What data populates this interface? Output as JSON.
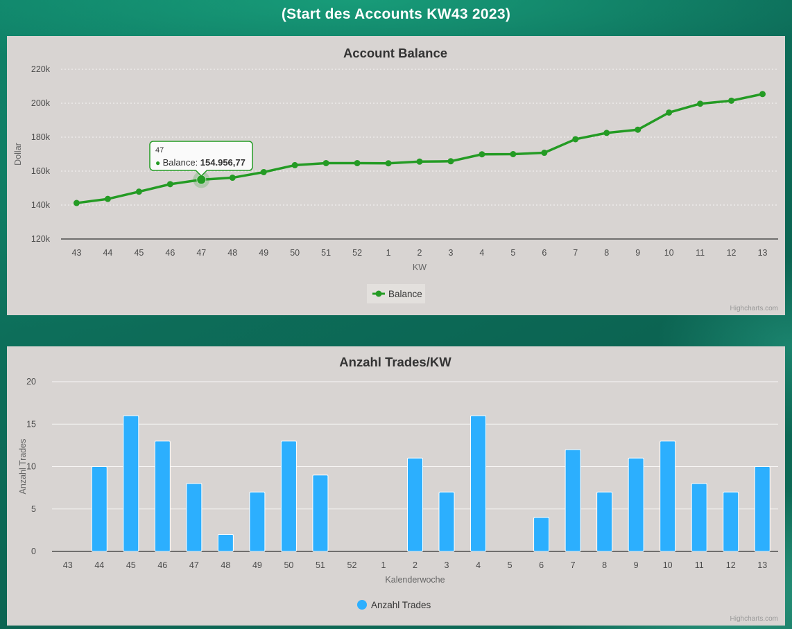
{
  "page": {
    "header_title": "(Start des Accounts KW43 2023)",
    "credits": "Highcharts.com",
    "theme": {
      "background_teal_dark": "#0c6452",
      "background_teal_light": "#1fa183",
      "panel_background": "#d8d4d2",
      "legend_box_background": "#e3e0dd",
      "line_green": "#249b24",
      "bar_blue": "#2caffe",
      "title_color": "#333333",
      "axis_label_color": "#4d4d4d",
      "axis_title_color": "#666666"
    }
  },
  "chart_data": [
    {
      "type": "line",
      "title": "Account Balance",
      "xlabel": "KW",
      "ylabel": "Dollar",
      "categories": [
        "43",
        "44",
        "45",
        "46",
        "47",
        "48",
        "49",
        "50",
        "51",
        "52",
        "1",
        "2",
        "3",
        "4",
        "5",
        "6",
        "7",
        "8",
        "9",
        "10",
        "11",
        "12",
        "13"
      ],
      "series": [
        {
          "name": "Balance",
          "color": "#249b24",
          "values": [
            141200,
            143600,
            147900,
            152300,
            154956.77,
            156100,
            159400,
            163500,
            164700,
            164700,
            164600,
            165600,
            165800,
            169900,
            170000,
            170800,
            178800,
            182500,
            184400,
            194500,
            199700,
            201500,
            205400
          ]
        }
      ],
      "ylim": [
        120000,
        220000
      ],
      "ytick_step": 20000,
      "ytick_labels": [
        "120k",
        "140k",
        "160k",
        "180k",
        "200k",
        "220k"
      ],
      "grid": "dashed",
      "legend_position": "bottom-center",
      "tooltip": {
        "point_index": 4,
        "category": "47",
        "label": "Balance",
        "value": "154.956,77"
      }
    },
    {
      "type": "bar",
      "title": "Anzahl Trades/KW",
      "xlabel": "Kalenderwoche",
      "ylabel": "Anzahl Trades",
      "categories": [
        "43",
        "44",
        "45",
        "46",
        "47",
        "48",
        "49",
        "50",
        "51",
        "52",
        "1",
        "2",
        "3",
        "4",
        "5",
        "6",
        "7",
        "8",
        "9",
        "10",
        "11",
        "12",
        "13"
      ],
      "series": [
        {
          "name": "Anzahl Trades",
          "color": "#2caffe",
          "values": [
            0,
            10,
            16,
            13,
            8,
            2,
            7,
            13,
            9,
            0,
            0,
            11,
            7,
            16,
            0,
            4,
            12,
            7,
            11,
            13,
            8,
            7,
            10
          ]
        }
      ],
      "ylim": [
        0,
        20
      ],
      "ytick_step": 5,
      "ytick_labels": [
        "0",
        "5",
        "10",
        "15",
        "20"
      ],
      "grid": "solid",
      "legend_position": "bottom-center"
    }
  ]
}
